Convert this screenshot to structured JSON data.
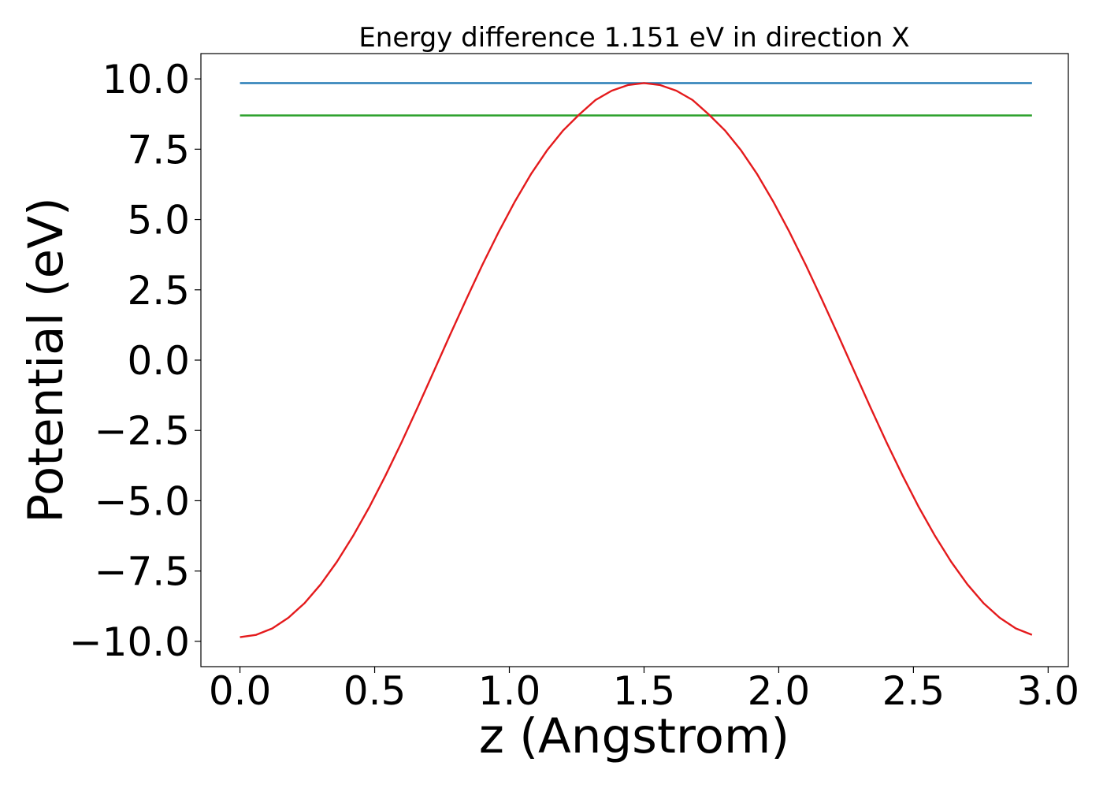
{
  "chart_data": {
    "type": "line",
    "title": "Energy difference 1.151 eV in direction X",
    "xlabel": "z (Angstrom)",
    "ylabel": "Potential (eV)",
    "xlim": [
      -0.145,
      3.075
    ],
    "ylim": [
      -10.9,
      10.9
    ],
    "xticks": [
      {
        "value": 0.0,
        "label": "0.0"
      },
      {
        "value": 0.5,
        "label": "0.5"
      },
      {
        "value": 1.0,
        "label": "1.0"
      },
      {
        "value": 1.5,
        "label": "1.5"
      },
      {
        "value": 2.0,
        "label": "2.0"
      },
      {
        "value": 2.5,
        "label": "2.5"
      },
      {
        "value": 3.0,
        "label": "3.0"
      }
    ],
    "yticks": [
      {
        "value": 10.0,
        "label": "10.0"
      },
      {
        "value": 7.5,
        "label": "7.5"
      },
      {
        "value": 5.0,
        "label": "5.0"
      },
      {
        "value": 2.5,
        "label": "2.5"
      },
      {
        "value": 0.0,
        "label": "0.0"
      },
      {
        "value": -2.5,
        "label": "−2.5"
      },
      {
        "value": -5.0,
        "label": "−5.0"
      },
      {
        "value": -7.5,
        "label": "−7.5"
      },
      {
        "value": -10.0,
        "label": "−10.0"
      }
    ],
    "grid": false,
    "legend": "none",
    "series": [
      {
        "color": "#1f77b4",
        "x": [
          0.0,
          2.94
        ],
        "y": [
          9.85,
          9.85
        ]
      },
      {
        "color": "#2ca02c",
        "x": [
          0.0,
          2.94
        ],
        "y": [
          8.7,
          8.7
        ]
      },
      {
        "color": "#e41a1c",
        "x": [
          0.0,
          0.06,
          0.12,
          0.18,
          0.24,
          0.3,
          0.36,
          0.42,
          0.48,
          0.54,
          0.6,
          0.66,
          0.72,
          0.78,
          0.84,
          0.9,
          0.96,
          1.02,
          1.08,
          1.14,
          1.2,
          1.26,
          1.32,
          1.38,
          1.44,
          1.5,
          1.56,
          1.62,
          1.68,
          1.74,
          1.8,
          1.86,
          1.92,
          1.98,
          2.04,
          2.1,
          2.16,
          2.22,
          2.28,
          2.34,
          2.4,
          2.46,
          2.52,
          2.58,
          2.64,
          2.7,
          2.76,
          2.82,
          2.88,
          2.94
        ],
        "y": [
          -9.85,
          -9.77,
          -9.54,
          -9.16,
          -8.64,
          -7.97,
          -7.17,
          -6.25,
          -5.23,
          -4.11,
          -2.92,
          -1.67,
          -0.39,
          0.9,
          2.16,
          3.39,
          4.55,
          5.63,
          6.61,
          7.46,
          8.17,
          8.74,
          9.25,
          9.58,
          9.78,
          9.85,
          9.78,
          9.58,
          9.25,
          8.74,
          8.17,
          7.46,
          6.61,
          5.63,
          4.55,
          3.39,
          2.16,
          0.9,
          -0.39,
          -1.67,
          -2.92,
          -4.11,
          -5.23,
          -6.25,
          -7.17,
          -7.97,
          -8.64,
          -9.16,
          -9.54,
          -9.77
        ]
      }
    ]
  }
}
